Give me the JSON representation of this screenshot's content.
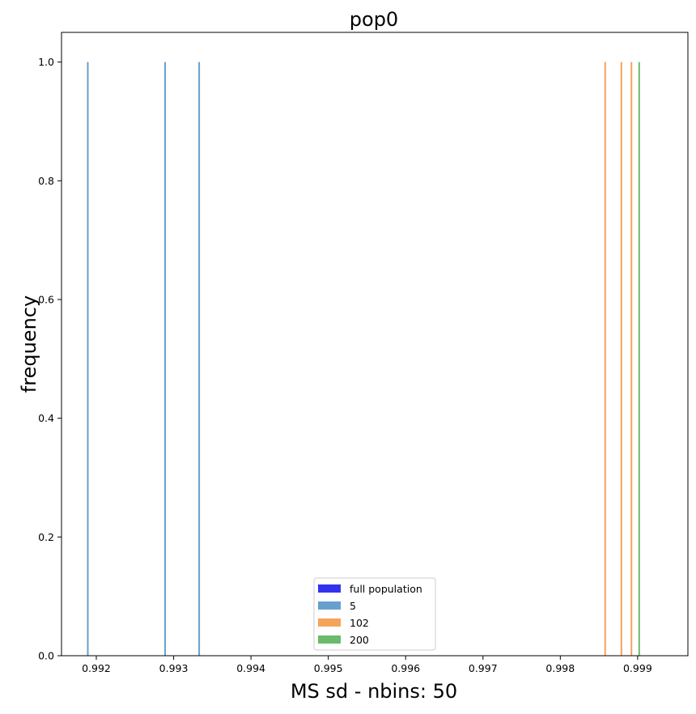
{
  "chart_data": {
    "type": "histogram",
    "title": "pop0",
    "xlabel": "MS sd - nbins: 50",
    "ylabel": "frequency",
    "xlim": [
      0.99155,
      0.99965
    ],
    "ylim": [
      0.0,
      1.05
    ],
    "x_ticks": [
      "0.992",
      "0.993",
      "0.994",
      "0.995",
      "0.996",
      "0.997",
      "0.998",
      "0.999"
    ],
    "x_tick_values": [
      0.992,
      0.993,
      0.994,
      0.995,
      0.996,
      0.997,
      0.998,
      0.999
    ],
    "y_ticks": [
      "0.0",
      "0.2",
      "0.4",
      "0.6",
      "0.8",
      "1.0"
    ],
    "y_tick_values": [
      0.0,
      0.2,
      0.4,
      0.6,
      0.8,
      1.0
    ],
    "grid": false,
    "legend_position": "lower center",
    "series": [
      {
        "name": "full population",
        "color": "#3333ee",
        "x": [],
        "frequency": []
      },
      {
        "name": "5",
        "color": "#66a1cd",
        "x": [
          0.99189,
          0.99289,
          0.99333
        ],
        "frequency": [
          1.0,
          1.0,
          1.0
        ]
      },
      {
        "name": "102",
        "color": "#f6a35a",
        "x": [
          0.99858,
          0.99879,
          0.99892
        ],
        "frequency": [
          1.0,
          1.0,
          1.0
        ]
      },
      {
        "name": "200",
        "color": "#6abb6a",
        "x": [
          0.99902
        ],
        "frequency": [
          1.0
        ]
      }
    ]
  }
}
